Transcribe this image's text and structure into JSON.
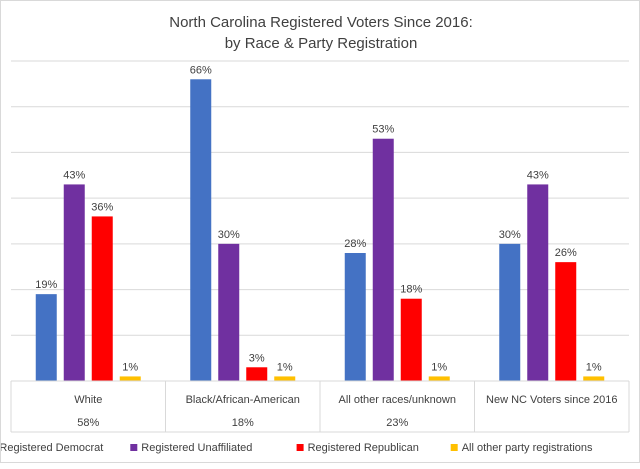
{
  "chart_data": {
    "type": "bar",
    "title_lines": [
      "North Carolina Registered Voters Since 2016:",
      "by Race & Party Registration"
    ],
    "categories": [
      "White",
      "Black/African-American",
      "All other races/unknown",
      "New NC Voters since 2016"
    ],
    "category_shares": [
      "58%",
      "18%",
      "23%",
      ""
    ],
    "series": [
      {
        "name": "Registered Democrat",
        "color": "#4472c4",
        "values": [
          19,
          66,
          28,
          30
        ],
        "labels": [
          "19%",
          "66%",
          "28%",
          "30%"
        ]
      },
      {
        "name": "Registered Unaffiliated",
        "color": "#7030a0",
        "values": [
          43,
          30,
          53,
          43
        ],
        "labels": [
          "43%",
          "30%",
          "53%",
          "43%"
        ]
      },
      {
        "name": "Registered Republican",
        "color": "#ff0000",
        "values": [
          36,
          3,
          18,
          26
        ],
        "labels": [
          "36%",
          "3%",
          "18%",
          "26%"
        ]
      },
      {
        "name": "All other party registrations",
        "color": "#ffc000",
        "values": [
          1,
          1,
          1,
          1
        ],
        "labels": [
          "1%",
          "1%",
          "1%",
          "1%"
        ]
      }
    ],
    "ylim": [
      0,
      70
    ],
    "gridlines": [
      0,
      10,
      20,
      30,
      40,
      50,
      60,
      70
    ],
    "grid": true,
    "legend_position": "bottom"
  }
}
